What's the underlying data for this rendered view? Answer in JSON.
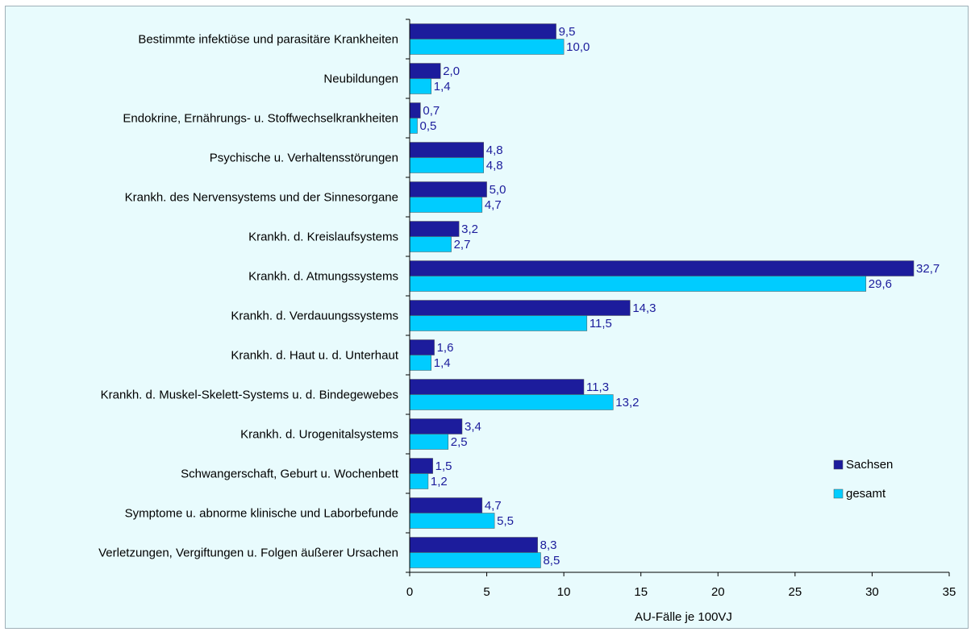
{
  "chart_data": {
    "type": "bar",
    "orientation": "horizontal",
    "categories": [
      "Bestimmte infektiöse und parasitäre Krankheiten",
      "Neubildungen",
      "Endokrine, Ernährungs- u. Stoffwechselkrankheiten",
      "Psychische u. Verhaltensstörungen",
      "Krankh.  des Nervensystems und der Sinnesorgane",
      "Krankh. d. Kreislaufsystems",
      "Krankh. d. Atmungssystems",
      "Krankh. d. Verdauungssystems",
      "Krankh. d. Haut u. d. Unterhaut",
      "Krankh. d. Muskel-Skelett-Systems u. d. Bindegewebes",
      "Krankh. d. Urogenitalsystems",
      "Schwangerschaft, Geburt u. Wochenbett",
      "Symptome u. abnorme klinische und Laborbefunde",
      "Verletzungen, Vergiftungen u. Folgen äußerer Ursachen"
    ],
    "series": [
      {
        "name": "Sachsen",
        "color": "#1c1c9c",
        "values": [
          9.5,
          2.0,
          0.7,
          4.8,
          5.0,
          3.2,
          32.7,
          14.3,
          1.6,
          11.3,
          3.4,
          1.5,
          4.7,
          8.3
        ],
        "labels": [
          "9,5",
          "2,0",
          "0,7",
          "4,8",
          "5,0",
          "3,2",
          "32,7",
          "14,3",
          "1,6",
          "11,3",
          "3,4",
          "1,5",
          "4,7",
          "8,3"
        ]
      },
      {
        "name": "gesamt",
        "color": "#00ccff",
        "values": [
          10.0,
          1.4,
          0.5,
          4.8,
          4.7,
          2.7,
          29.6,
          11.5,
          1.4,
          13.2,
          2.5,
          1.2,
          5.5,
          8.5
        ],
        "labels": [
          "10,0",
          "1,4",
          "0,5",
          "4,8",
          "4,7",
          "2,7",
          "29,6",
          "11,5",
          "1,4",
          "13,2",
          "2,5",
          "1,2",
          "5,5",
          "8,5"
        ]
      }
    ],
    "xlabel": "AU-Fälle je 100VJ",
    "xlim": [
      0,
      35
    ],
    "xticks": [
      "0",
      "5",
      "10",
      "15",
      "20",
      "25",
      "30",
      "35"
    ],
    "grid": false,
    "legend_position": "right"
  }
}
